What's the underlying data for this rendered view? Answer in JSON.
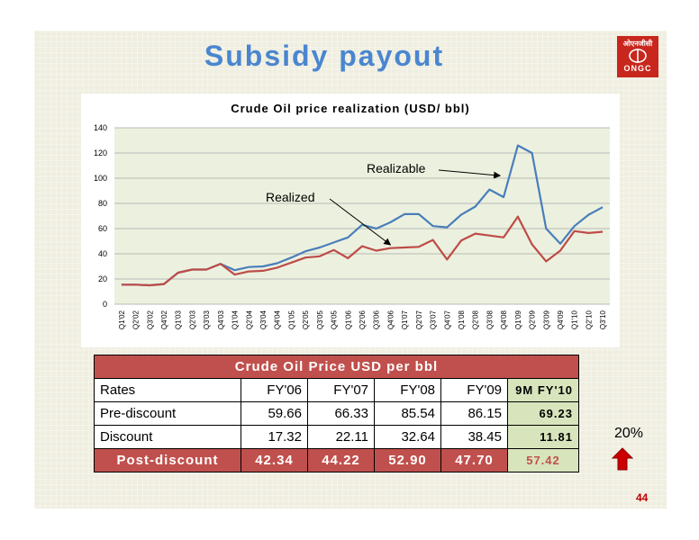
{
  "slide": {
    "title": "Subsidy payout",
    "logo_top": "ओएनजीसी",
    "logo_bottom": "ONGC",
    "page_number": "44",
    "increase_pct": "20%"
  },
  "chart_data": {
    "type": "line",
    "title": "Crude Oil price realization (USD/ bbl)",
    "xlabel": "",
    "ylabel": "",
    "ylim": [
      0,
      140
    ],
    "yticks": [
      0,
      20,
      40,
      60,
      80,
      100,
      120,
      140
    ],
    "grid": true,
    "categories": [
      "Q1'02",
      "Q2'02",
      "Q3'02",
      "Q4'02",
      "Q1'03",
      "Q2'03",
      "Q3'03",
      "Q4'03",
      "Q1'04",
      "Q2'04",
      "Q3'04",
      "Q4'04",
      "Q1'05",
      "Q2'05",
      "Q3'05",
      "Q4'05",
      "Q1'06",
      "Q2'06",
      "Q3'06",
      "Q4'06",
      "Q1'07",
      "Q2'07",
      "Q3'07",
      "Q4'07",
      "Q1'08",
      "Q2'08",
      "Q3'08",
      "Q4'08",
      "Q1'09",
      "Q2'09",
      "Q3'09",
      "Q4'09",
      "Q1'10",
      "Q2'10",
      "Q3'10"
    ],
    "series": [
      {
        "name": "Realizable",
        "color": "#4a7ebb",
        "values": [
          15.5,
          15.5,
          15,
          16,
          25,
          27.5,
          27.5,
          32,
          27,
          29.5,
          30,
          32.5,
          37,
          42,
          45,
          49,
          53,
          63,
          60,
          65,
          71.5,
          71.5,
          62,
          61,
          71,
          77.5,
          91,
          85,
          126,
          120,
          60,
          48,
          62,
          71,
          77
        ]
      },
      {
        "name": "Realized",
        "color": "#be4b48",
        "values": [
          15.5,
          15.5,
          15,
          16,
          25,
          27.5,
          27.5,
          32,
          23.5,
          26,
          26.5,
          29,
          33,
          37,
          38,
          43,
          36.5,
          46,
          42.5,
          44.5,
          45,
          45.5,
          51,
          35.5,
          50.5,
          56,
          54.5,
          53,
          69.5,
          47.5,
          34,
          42.5,
          58,
          56.5,
          57.5
        ]
      }
    ],
    "annotations": [
      "Realizable",
      "Realized"
    ]
  },
  "table": {
    "header": "Crude Oil Price USD per bbl",
    "columns": [
      "Rates",
      "FY'06",
      "FY'07",
      "FY'08",
      "FY'09",
      "9M FY'10"
    ],
    "rows": [
      {
        "label": "Pre-discount",
        "values": [
          "59.66",
          "66.33",
          "85.54",
          "86.15",
          "69.23"
        ]
      },
      {
        "label": "Discount",
        "values": [
          "17.32",
          "22.11",
          "32.64",
          "38.45",
          "11.81"
        ]
      },
      {
        "label": "Post-discount",
        "values": [
          "42.34",
          "44.22",
          "52.90",
          "47.70",
          "57.42"
        ]
      }
    ]
  },
  "colors": {
    "title": "#4a86d0",
    "accent_red": "#c0504d",
    "highlight_green": "#d8e4bc",
    "arrow_red": "#cc0000"
  }
}
